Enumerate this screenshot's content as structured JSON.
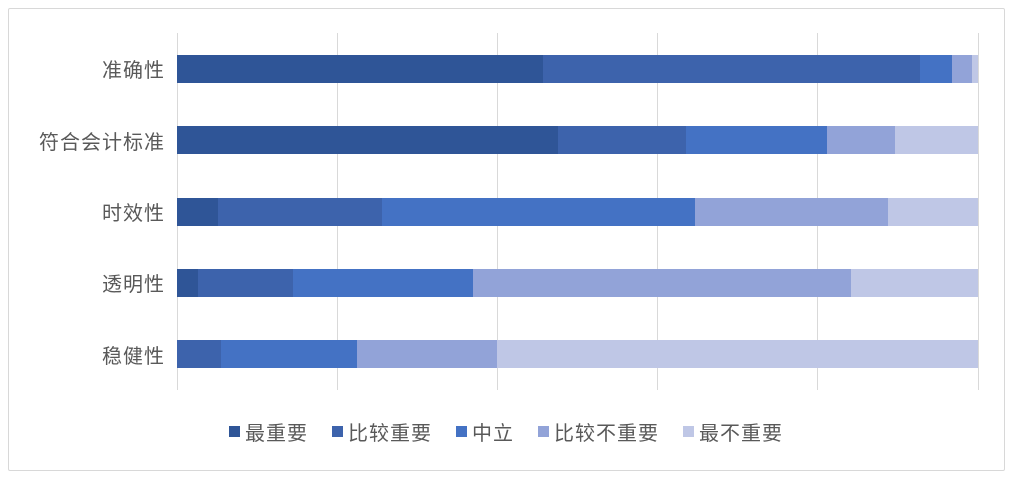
{
  "chart_data": {
    "type": "bar",
    "orientation": "horizontal",
    "stacked": true,
    "percent_stacked": true,
    "title": "",
    "xlabel": "",
    "ylabel": "",
    "xlim": [
      0,
      100
    ],
    "gridline_step_percent": 20,
    "grid": "vertical-on",
    "axis_tick_labels_visible": false,
    "legend_position": "bottom",
    "categories": [
      "准确性",
      "符合会计标准",
      "时效性",
      "透明性",
      "稳健性"
    ],
    "series": [
      {
        "name": "最重要",
        "color": "#2F5597",
        "values": [
          45.7,
          47.6,
          5.1,
          2.6,
          0.0
        ]
      },
      {
        "name": "比较重要",
        "color": "#3D63AC",
        "values": [
          47.0,
          16.0,
          20.5,
          11.9,
          5.5
        ]
      },
      {
        "name": "中立",
        "color": "#4472C4",
        "values": [
          4.0,
          17.6,
          39.1,
          22.5,
          17.0
        ]
      },
      {
        "name": "比较不重要",
        "color": "#92A3D8",
        "values": [
          2.6,
          8.5,
          24.1,
          47.1,
          17.5
        ]
      },
      {
        "name": "最不重要",
        "color": "#BFC7E6",
        "values": [
          0.7,
          10.3,
          11.2,
          15.9,
          60.0
        ]
      }
    ]
  },
  "styles": {
    "frame_border_color": "#D8D8D8",
    "gridline_color": "#D9D9D9",
    "label_text_color": "#595959",
    "background_color": "#FFFFFF"
  }
}
